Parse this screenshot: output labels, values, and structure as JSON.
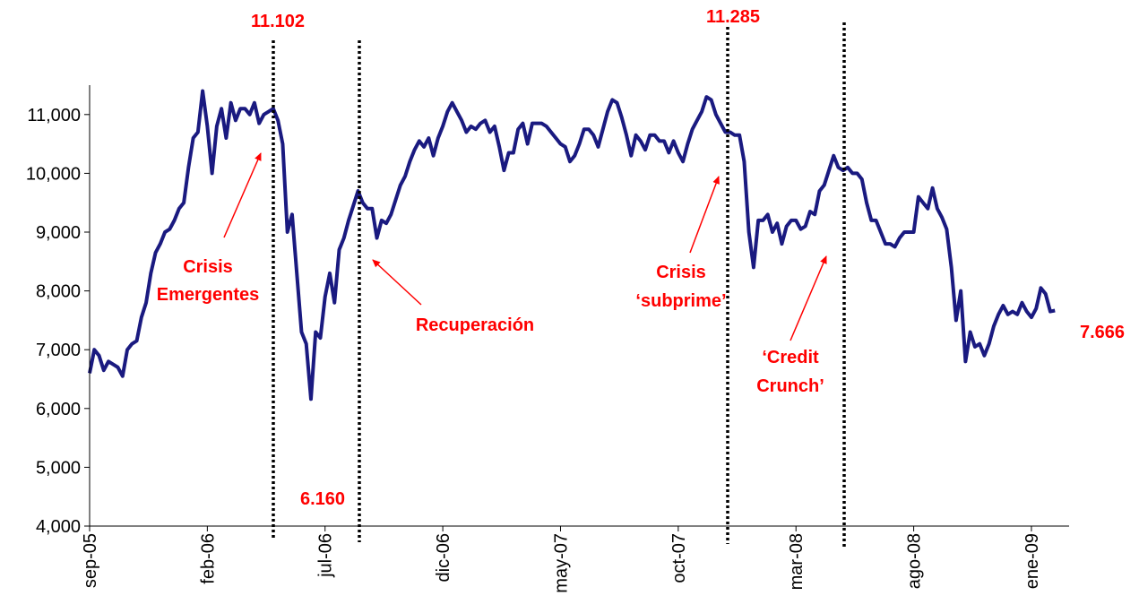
{
  "chart_data": {
    "type": "line",
    "color": "#1a1a80",
    "values": [
      6600,
      7000,
      6900,
      6650,
      6800,
      6750,
      6700,
      6550,
      7000,
      7100,
      7150,
      7550,
      7800,
      8300,
      8650,
      8800,
      9000,
      9050,
      9200,
      9400,
      9500,
      10100,
      10600,
      10700,
      11400,
      10800,
      10000,
      10800,
      11100,
      10600,
      11200,
      10900,
      11100,
      11100,
      11000,
      11200,
      10850,
      11000,
      11050,
      11100,
      10900,
      10500,
      9000,
      9300,
      8300,
      7300,
      7100,
      6160,
      7300,
      7200,
      7900,
      8300,
      7800,
      8700,
      8900,
      9200,
      9450,
      9700,
      9500,
      9400,
      9400,
      8900,
      9200,
      9150,
      9300,
      9550,
      9800,
      9950,
      10200,
      10400,
      10550,
      10450,
      10600,
      10300,
      10600,
      10800,
      11050,
      11200,
      11050,
      10900,
      10700,
      10800,
      10750,
      10850,
      10900,
      10700,
      10800,
      10450,
      10050,
      10350,
      10350,
      10750,
      10850,
      10500,
      10850,
      10850,
      10850,
      10800,
      10700,
      10600,
      10500,
      10450,
      10200,
      10300,
      10500,
      10750,
      10750,
      10650,
      10450,
      10750,
      11050,
      11250,
      11200,
      10950,
      10650,
      10300,
      10650,
      10550,
      10400,
      10650,
      10650,
      10550,
      10550,
      10350,
      10550,
      10350,
      10200,
      10500,
      10750,
      10900,
      11050,
      11300,
      11250,
      11000,
      10850,
      10700,
      10700,
      10650,
      10650,
      10200,
      9000,
      8400,
      9200,
      9200,
      9300,
      9000,
      9150,
      8800,
      9100,
      9200,
      9200,
      9050,
      9100,
      9350,
      9300,
      9700,
      9800,
      10050,
      10300,
      10100,
      10050,
      10100,
      10000,
      10000,
      9900,
      9500,
      9200,
      9200,
      9000,
      8800,
      8800,
      8750,
      8900,
      9000,
      9000,
      9000,
      9600,
      9500,
      9400,
      9750,
      9400,
      9250,
      9050,
      8400,
      7500,
      8000,
      6800,
      7300,
      7050,
      7100,
      6900,
      7100,
      7400,
      7600,
      7750,
      7600,
      7650,
      7600,
      7800,
      7650,
      7550,
      7700,
      8050,
      7950,
      7650,
      7666
    ],
    "xlim": [
      0,
      208
    ],
    "xticks": [
      {
        "value": 0,
        "label": "sep-05"
      },
      {
        "value": 25,
        "label": "feb-06"
      },
      {
        "value": 50,
        "label": "jul-06"
      },
      {
        "value": 75,
        "label": "dic-06"
      },
      {
        "value": 100,
        "label": "may-07"
      },
      {
        "value": 125,
        "label": "oct-07"
      },
      {
        "value": 150,
        "label": "mar-08"
      },
      {
        "value": 175,
        "label": "ago-08"
      },
      {
        "value": 200,
        "label": "ene-09"
      }
    ],
    "ylim": [
      4000,
      11500
    ],
    "yticks": [
      {
        "value": 4000,
        "label": "4,000"
      },
      {
        "value": 5000,
        "label": "5,000"
      },
      {
        "value": 6000,
        "label": "6,000"
      },
      {
        "value": 7000,
        "label": "7,000"
      },
      {
        "value": 8000,
        "label": "8,000"
      },
      {
        "value": 9000,
        "label": "9,000"
      },
      {
        "value": 10000,
        "label": "10,000"
      },
      {
        "value": 11000,
        "label": "11,000"
      }
    ],
    "grid": false,
    "annotations": [
      "11.102",
      "6.160",
      "11.285",
      "7.666",
      [
        "Crisis",
        "Emergentes"
      ],
      "Recuperación",
      [
        "Crisis",
        "‘subprime’"
      ],
      [
        "‘Credit",
        "Crunch’"
      ]
    ]
  }
}
